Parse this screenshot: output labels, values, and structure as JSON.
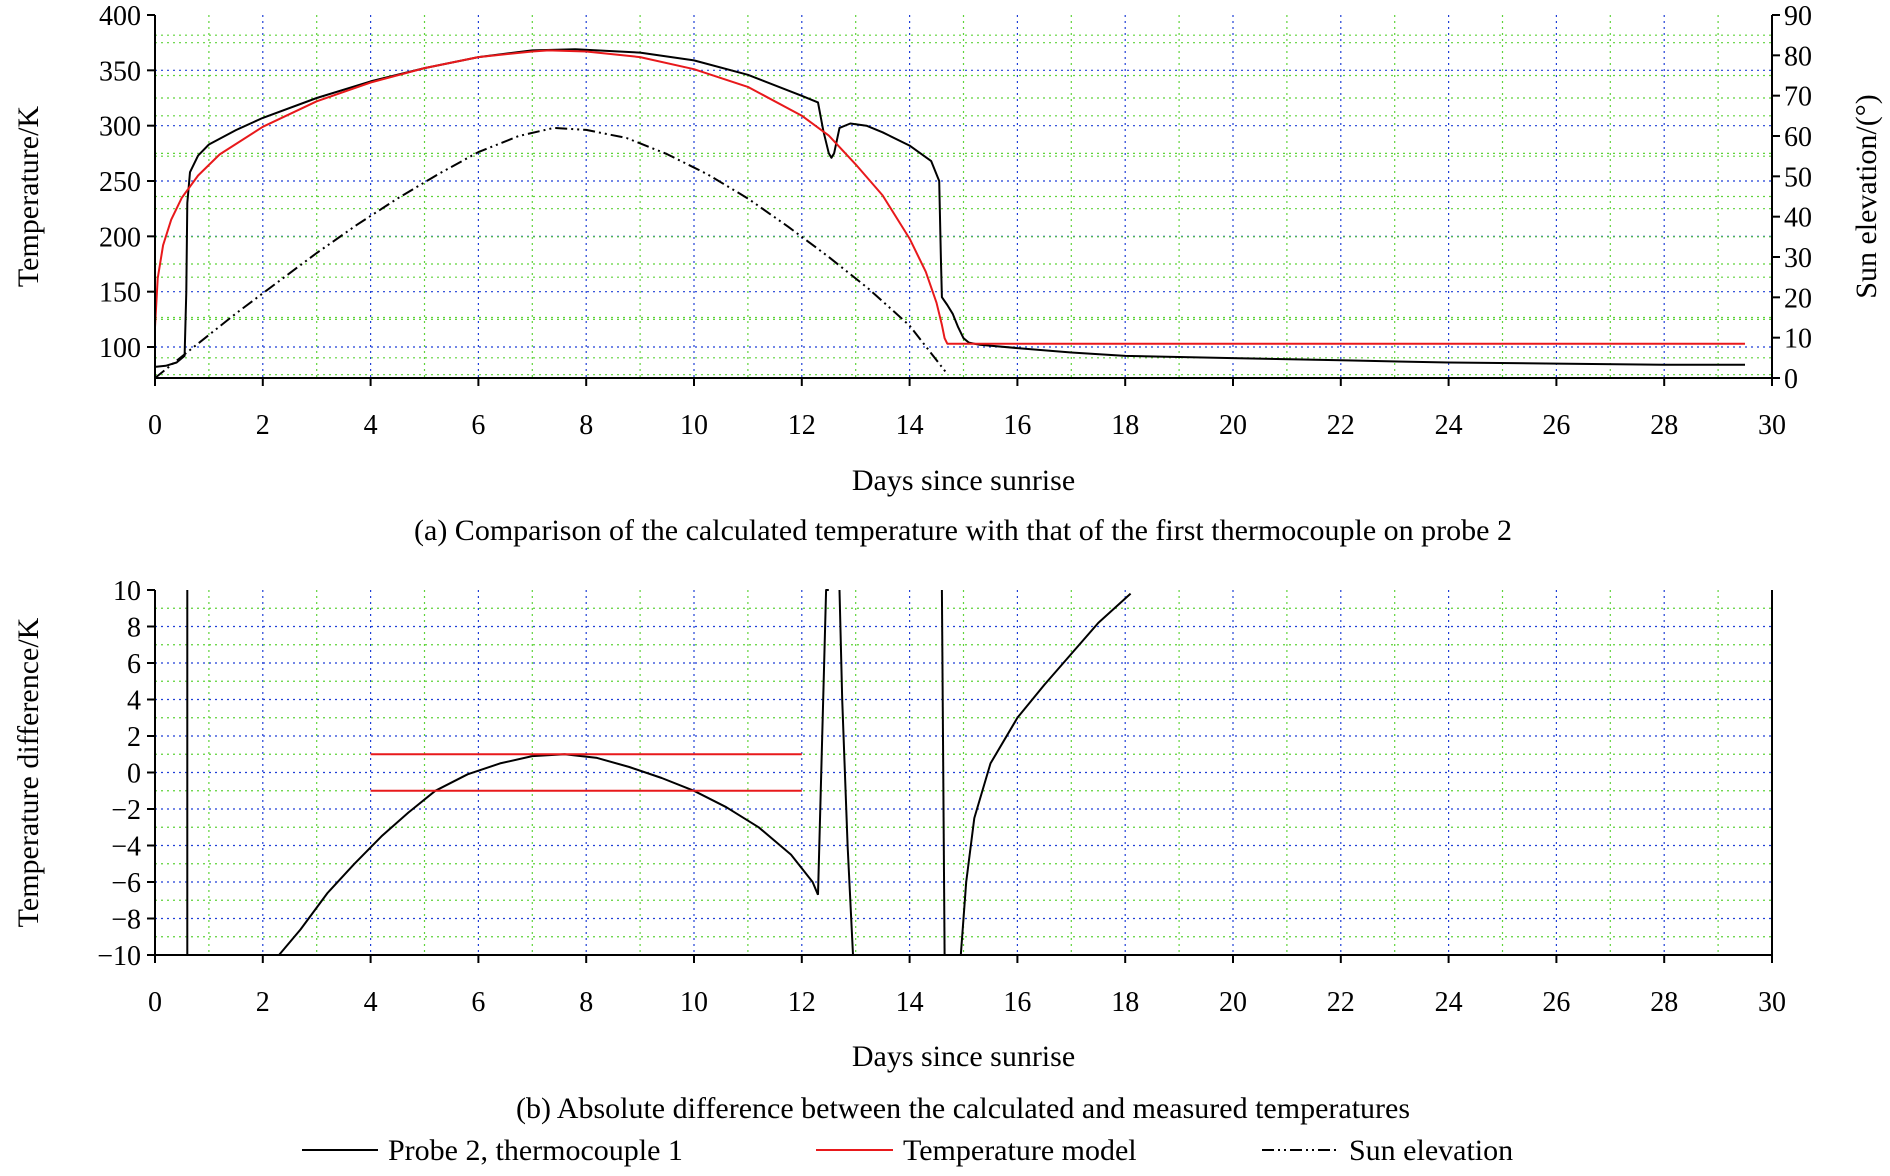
{
  "colors": {
    "probe": "#000000",
    "model": "#e8191b",
    "sun": "#000000",
    "grid_major": "#1f3fd6",
    "grid_minor": "#5fd33a"
  },
  "legend": [
    {
      "key": "probe",
      "label": "Probe 2, thermocouple 1"
    },
    {
      "key": "model",
      "label": "Temperature model"
    },
    {
      "key": "sun",
      "label": "Sun elevation"
    }
  ],
  "chart_data": [
    {
      "type": "line",
      "id": "a",
      "caption": "(a) Comparison of the calculated temperature with that of the first thermocouple on probe 2",
      "xlabel": "Days since sunrise",
      "ylabel": "Temperature/K",
      "y2label": "Sun elevation/(°)",
      "xlim": [
        0,
        30
      ],
      "ylim": [
        72,
        400
      ],
      "y2lim": [
        0,
        90
      ],
      "xticks": [
        0,
        2,
        4,
        6,
        8,
        10,
        12,
        14,
        16,
        18,
        20,
        22,
        24,
        26,
        28,
        30
      ],
      "yticks": [
        100,
        150,
        200,
        250,
        300,
        350,
        400
      ],
      "y2ticks": [
        0,
        10,
        20,
        30,
        40,
        50,
        60,
        70,
        80,
        90
      ],
      "series": [
        {
          "name": "Probe 2, thermocouple 1",
          "key": "probe",
          "x": [
            0,
            0.2,
            0.4,
            0.55,
            0.58,
            0.6,
            0.65,
            0.8,
            1.0,
            1.5,
            2,
            3,
            4,
            5,
            6,
            7,
            7.8,
            9,
            10,
            11,
            12,
            12.3,
            12.4,
            12.5,
            12.55,
            12.6,
            12.7,
            12.9,
            13.2,
            13.5,
            14,
            14.4,
            14.55,
            14.58,
            14.6,
            14.7,
            14.8,
            14.9,
            15.0,
            15.1,
            15.3,
            16,
            17,
            18,
            20,
            22,
            24,
            26,
            28,
            29.5
          ],
          "values": [
            82,
            83,
            86,
            92,
            150,
            230,
            258,
            273,
            283,
            296,
            307,
            325,
            340,
            352,
            362,
            368,
            369,
            366,
            359,
            346,
            327,
            321,
            295,
            275,
            271,
            275,
            298,
            302,
            300,
            294,
            282,
            268,
            250,
            180,
            145,
            138,
            130,
            118,
            108,
            104,
            102,
            99,
            95,
            92,
            90,
            88,
            86,
            85,
            84,
            84
          ]
        },
        {
          "name": "Temperature model",
          "key": "model",
          "x": [
            0,
            0.05,
            0.15,
            0.3,
            0.5,
            0.8,
            1.2,
            2,
            3,
            4,
            5,
            6,
            7,
            7.3,
            8,
            9,
            10,
            11,
            12,
            12.5,
            13,
            13.5,
            14,
            14.3,
            14.5,
            14.6,
            14.65,
            14.7,
            14.75,
            16,
            20,
            24,
            28,
            29.5
          ],
          "values": [
            118,
            162,
            192,
            215,
            235,
            255,
            274,
            299,
            322,
            339,
            352,
            362,
            367,
            368,
            367,
            362,
            351,
            335,
            309,
            291,
            265,
            237,
            198,
            168,
            140,
            120,
            108,
            103,
            103,
            103,
            103,
            103,
            103,
            103
          ]
        },
        {
          "name": "Sun elevation",
          "key": "sun",
          "axis": "y2",
          "x": [
            0,
            0.75,
            1.5,
            2.25,
            3,
            3.75,
            4.5,
            5.25,
            6,
            6.75,
            7.4,
            8,
            8.75,
            9.5,
            10.25,
            11,
            11.75,
            12.5,
            13.25,
            14,
            14.7
          ],
          "values": [
            0,
            8,
            16,
            23.5,
            31,
            38,
            44.5,
            50.5,
            56,
            60,
            62,
            61.5,
            59.5,
            55.5,
            50.5,
            44.5,
            37.5,
            30,
            22,
            13,
            1
          ]
        }
      ]
    },
    {
      "type": "line",
      "id": "b",
      "caption": "(b) Absolute difference between the calculated and measured temperatures",
      "xlabel": "Days since sunrise",
      "ylabel": "Temperature difference/K",
      "xlim": [
        0,
        30
      ],
      "ylim": [
        -10,
        10
      ],
      "xticks": [
        0,
        2,
        4,
        6,
        8,
        10,
        12,
        14,
        16,
        18,
        20,
        22,
        24,
        26,
        28,
        30
      ],
      "yticks": [
        -10,
        -8,
        -6,
        -4,
        -2,
        0,
        2,
        4,
        6,
        8,
        10
      ],
      "ytick_labels": [
        "−10",
        "−8",
        "−6",
        "−4",
        "−2",
        "0",
        "2",
        "4",
        "6",
        "8",
        "10"
      ],
      "series": [
        {
          "name": "Probe 2, thermocouple 1",
          "key": "probe",
          "segments": [
            {
              "x": [
                0.6,
                0.6
              ],
              "values": [
                10,
                -10
              ]
            },
            {
              "x": [
                2.3,
                2.7,
                3.2,
                3.7,
                4.2,
                4.7,
                5.2,
                5.8,
                6.4,
                7.0,
                7.6,
                8.2,
                8.8,
                9.4,
                10.0,
                10.6,
                11.2,
                11.8,
                12.2,
                12.3
              ],
              "values": [
                -10,
                -8.6,
                -6.6,
                -5.0,
                -3.5,
                -2.2,
                -1.0,
                -0.1,
                0.5,
                0.9,
                1.0,
                0.8,
                0.3,
                -0.3,
                -1.0,
                -1.9,
                -3.0,
                -4.5,
                -6.0,
                -6.7
              ]
            },
            {
              "x": [
                12.3,
                12.45,
                12.5
              ],
              "values": [
                -6.7,
                10,
                10
              ]
            },
            {
              "x": [
                12.7,
                12.75,
                12.85,
                12.95
              ],
              "values": [
                10,
                4,
                -4,
                -10
              ]
            },
            {
              "x": [
                14.6,
                14.65
              ],
              "values": [
                10,
                -10
              ]
            },
            {
              "x": [
                14.95,
                15.05,
                15.2,
                15.5,
                16,
                16.5,
                17,
                17.5,
                18.1
              ],
              "values": [
                -10,
                -6,
                -2.5,
                0.5,
                3,
                4.8,
                6.5,
                8.2,
                9.8
              ]
            }
          ]
        },
        {
          "name": "Temperature model",
          "key": "model",
          "segments": [
            {
              "x": [
                4,
                12
              ],
              "values": [
                1,
                1
              ]
            },
            {
              "x": [
                4,
                12
              ],
              "values": [
                -1,
                -1
              ]
            }
          ]
        }
      ]
    }
  ]
}
